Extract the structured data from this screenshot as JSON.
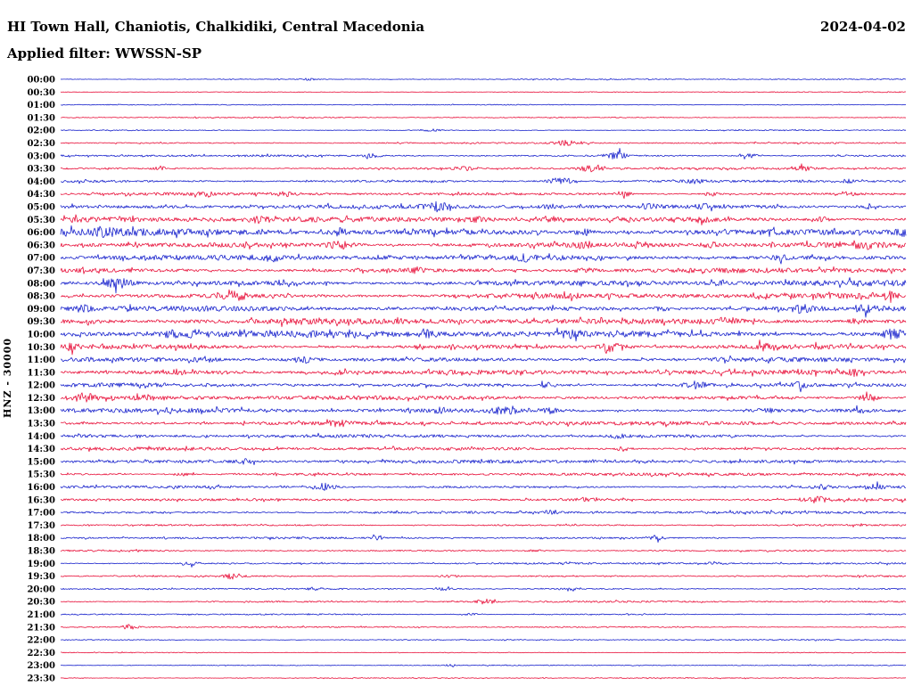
{
  "header": {
    "station_title": "HI Town Hall, Chaniotis, Chalkidiki, Central Macedonia",
    "date": "2024-04-02",
    "filter_label": "Applied filter: WWSSN-SP"
  },
  "chart_data": {
    "type": "line",
    "subtype": "helicorder",
    "title": "HI Town Hall, Chaniotis, Chalkidiki, Central Macedonia",
    "date": "2024-04-02",
    "filter": "WWSSN-SP",
    "channel_label": "HNZ - 30000",
    "row_duration_minutes": 30,
    "start_time": "00:00",
    "end_time": "24:00",
    "legend_position": "none",
    "grid": false,
    "colors": {
      "blue": "#1822cc",
      "red": "#e8103a"
    },
    "rows": [
      {
        "time": "00:00",
        "color": "blue",
        "amp": 0.6,
        "bursts": [
          {
            "x": 0.294,
            "a": 1.0
          }
        ]
      },
      {
        "time": "00:30",
        "color": "red",
        "amp": 0.5,
        "bursts": []
      },
      {
        "time": "01:00",
        "color": "blue",
        "amp": 0.5,
        "bursts": []
      },
      {
        "time": "01:30",
        "color": "red",
        "amp": 0.6,
        "bursts": []
      },
      {
        "time": "02:00",
        "color": "blue",
        "amp": 0.6,
        "bursts": [
          {
            "x": 0.44,
            "a": 1.2
          }
        ]
      },
      {
        "time": "02:30",
        "color": "red",
        "amp": 0.8,
        "bursts": [
          {
            "x": 0.6,
            "a": 3.2,
            "w": 0.016
          }
        ]
      },
      {
        "time": "03:00",
        "color": "blue",
        "amp": 1.2,
        "bursts": [
          {
            "x": 0.37,
            "a": 2.0
          },
          {
            "x": 0.657,
            "a": 4.2,
            "w": 0.012
          },
          {
            "x": 0.814,
            "a": 2.4
          }
        ]
      },
      {
        "time": "03:30",
        "color": "red",
        "amp": 1.2,
        "bursts": [
          {
            "x": 0.118,
            "a": 1.8
          },
          {
            "x": 0.477,
            "a": 2.0
          },
          {
            "x": 0.627,
            "a": 3.4,
            "w": 0.014
          },
          {
            "x": 0.878,
            "a": 2.4
          }
        ]
      },
      {
        "time": "04:00",
        "color": "blue",
        "amp": 1.5,
        "bursts": [
          {
            "x": 0.592,
            "a": 4.0,
            "w": 0.014
          },
          {
            "x": 0.75,
            "a": 1.8
          },
          {
            "x": 0.93,
            "a": 1.8
          }
        ]
      },
      {
        "time": "04:30",
        "color": "red",
        "amp": 1.6,
        "bursts": [
          {
            "x": 0.17,
            "a": 1.8
          },
          {
            "x": 0.265,
            "a": 1.8
          },
          {
            "x": 0.667,
            "a": 2.0
          },
          {
            "x": 0.77,
            "a": 1.8
          },
          {
            "x": 0.93,
            "a": 2.0
          }
        ]
      },
      {
        "time": "05:00",
        "color": "blue",
        "amp": 2.2,
        "bursts": [
          {
            "x": 0.444,
            "a": 3.8,
            "w": 0.014
          },
          {
            "x": 0.58,
            "a": 2.2
          },
          {
            "x": 0.7,
            "a": 2.4
          },
          {
            "x": 0.76,
            "a": 2.2
          },
          {
            "x": 0.96,
            "a": 2.4
          }
        ]
      },
      {
        "time": "05:30",
        "color": "red",
        "amp": 3.0,
        "bursts": [
          {
            "x": 0.234,
            "a": 2.4
          },
          {
            "x": 0.497,
            "a": 2.4
          },
          {
            "x": 0.58,
            "a": 2.4
          },
          {
            "x": 0.666,
            "a": 2.4
          },
          {
            "x": 0.76,
            "a": 2.4
          },
          {
            "x": 0.9,
            "a": 2.4
          }
        ]
      },
      {
        "time": "06:00",
        "color": "blue",
        "amp": 4.0,
        "bursts": [
          {
            "x": 0.05,
            "a": 2.8
          },
          {
            "x": 0.33,
            "a": 2.8
          },
          {
            "x": 0.62,
            "a": 2.8
          },
          {
            "x": 0.995,
            "a": 3.8
          }
        ]
      },
      {
        "time": "06:30",
        "color": "red",
        "amp": 3.3,
        "bursts": [
          {
            "x": 0.33,
            "a": 3.8,
            "w": 0.016
          },
          {
            "x": 0.62,
            "a": 2.4
          },
          {
            "x": 0.77,
            "a": 2.4
          },
          {
            "x": 0.95,
            "a": 2.4
          }
        ]
      },
      {
        "time": "07:00",
        "color": "blue",
        "amp": 2.8,
        "bursts": [
          {
            "x": 0.25,
            "a": 2.4
          },
          {
            "x": 0.55,
            "a": 2.4
          },
          {
            "x": 0.85,
            "a": 2.4
          }
        ]
      },
      {
        "time": "07:30",
        "color": "red",
        "amp": 2.8,
        "bursts": [
          {
            "x": 0.42,
            "a": 2.4
          },
          {
            "x": 0.62,
            "a": 2.4
          }
        ]
      },
      {
        "time": "08:00",
        "color": "blue",
        "amp": 3.2,
        "bursts": [
          {
            "x": 0.068,
            "a": 4.4,
            "w": 0.016
          },
          {
            "x": 0.265,
            "a": 2.8
          },
          {
            "x": 0.78,
            "a": 2.4
          }
        ]
      },
      {
        "time": "08:30",
        "color": "red",
        "amp": 3.0,
        "bursts": [
          {
            "x": 0.208,
            "a": 4.0,
            "w": 0.016
          },
          {
            "x": 0.6,
            "a": 2.8
          },
          {
            "x": 0.98,
            "a": 2.4
          }
        ]
      },
      {
        "time": "09:00",
        "color": "blue",
        "amp": 3.2,
        "bursts": [
          {
            "x": 0.025,
            "a": 2.8
          },
          {
            "x": 0.71,
            "a": 2.6
          },
          {
            "x": 0.875,
            "a": 3.4
          },
          {
            "x": 0.95,
            "a": 2.8
          }
        ]
      },
      {
        "time": "09:30",
        "color": "red",
        "amp": 3.0,
        "bursts": [
          {
            "x": 0.034,
            "a": 2.6
          },
          {
            "x": 0.275,
            "a": 2.4
          },
          {
            "x": 0.79,
            "a": 3.4,
            "w": 0.014
          },
          {
            "x": 0.94,
            "a": 2.6
          }
        ]
      },
      {
        "time": "10:00",
        "color": "blue",
        "amp": 3.6,
        "bursts": [
          {
            "x": 0.13,
            "a": 3.0
          },
          {
            "x": 0.16,
            "a": 3.0
          },
          {
            "x": 0.435,
            "a": 2.6
          },
          {
            "x": 0.6,
            "a": 2.6
          },
          {
            "x": 0.985,
            "a": 4.0,
            "w": 0.014
          }
        ]
      },
      {
        "time": "10:30",
        "color": "red",
        "amp": 2.8,
        "bursts": [
          {
            "x": 0.012,
            "a": 2.6
          },
          {
            "x": 0.655,
            "a": 4.2,
            "w": 0.016
          },
          {
            "x": 0.83,
            "a": 2.4
          }
        ]
      },
      {
        "time": "11:00",
        "color": "blue",
        "amp": 2.8,
        "bursts": [
          {
            "x": 0.17,
            "a": 2.4
          },
          {
            "x": 0.285,
            "a": 3.4,
            "w": 0.014
          }
        ]
      },
      {
        "time": "11:30",
        "color": "red",
        "amp": 2.5,
        "bursts": [
          {
            "x": 0.14,
            "a": 2.2
          },
          {
            "x": 0.33,
            "a": 2.4
          },
          {
            "x": 0.94,
            "a": 2.4
          }
        ]
      },
      {
        "time": "12:00",
        "color": "blue",
        "amp": 2.4,
        "bursts": [
          {
            "x": 0.577,
            "a": 2.4
          },
          {
            "x": 0.75,
            "a": 3.6,
            "w": 0.014
          },
          {
            "x": 0.875,
            "a": 2.2
          }
        ]
      },
      {
        "time": "12:30",
        "color": "red",
        "amp": 2.4,
        "bursts": [
          {
            "x": 0.028,
            "a": 3.8,
            "w": 0.012
          },
          {
            "x": 0.1,
            "a": 2.2
          },
          {
            "x": 0.955,
            "a": 4.0,
            "w": 0.012
          }
        ]
      },
      {
        "time": "13:00",
        "color": "blue",
        "amp": 2.4,
        "bursts": [
          {
            "x": 0.45,
            "a": 2.2
          },
          {
            "x": 0.525,
            "a": 3.8,
            "w": 0.012
          },
          {
            "x": 0.578,
            "a": 2.4
          },
          {
            "x": 0.835,
            "a": 2.2
          },
          {
            "x": 0.945,
            "a": 2.6
          }
        ]
      },
      {
        "time": "13:30",
        "color": "red",
        "amp": 2.2,
        "bursts": [
          {
            "x": 0.33,
            "a": 2.6
          }
        ]
      },
      {
        "time": "14:00",
        "color": "blue",
        "amp": 1.8,
        "bursts": [
          {
            "x": 0.66,
            "a": 1.8
          }
        ]
      },
      {
        "time": "14:30",
        "color": "red",
        "amp": 1.8,
        "bursts": [
          {
            "x": 0.665,
            "a": 2.0
          }
        ]
      },
      {
        "time": "15:00",
        "color": "blue",
        "amp": 1.8,
        "bursts": [
          {
            "x": 0.218,
            "a": 2.4
          }
        ]
      },
      {
        "time": "15:30",
        "color": "red",
        "amp": 1.6,
        "bursts": [
          {
            "x": 0.145,
            "a": 2.0
          }
        ]
      },
      {
        "time": "16:00",
        "color": "blue",
        "amp": 1.6,
        "bursts": [
          {
            "x": 0.313,
            "a": 4.0,
            "w": 0.012
          },
          {
            "x": 0.9,
            "a": 2.2
          },
          {
            "x": 0.965,
            "a": 2.6
          }
        ]
      },
      {
        "time": "16:30",
        "color": "red",
        "amp": 1.6,
        "bursts": [
          {
            "x": 0.62,
            "a": 1.8
          },
          {
            "x": 0.893,
            "a": 3.2,
            "w": 0.014
          }
        ]
      },
      {
        "time": "17:00",
        "color": "blue",
        "amp": 1.4,
        "bursts": [
          {
            "x": 0.582,
            "a": 2.2
          }
        ]
      },
      {
        "time": "17:30",
        "color": "red",
        "amp": 1.1,
        "bursts": []
      },
      {
        "time": "18:00",
        "color": "blue",
        "amp": 1.1,
        "bursts": [
          {
            "x": 0.377,
            "a": 1.8
          },
          {
            "x": 0.705,
            "a": 2.0
          }
        ]
      },
      {
        "time": "18:30",
        "color": "red",
        "amp": 1.0,
        "bursts": [
          {
            "x": 0.56,
            "a": 1.4
          }
        ]
      },
      {
        "time": "19:00",
        "color": "blue",
        "amp": 1.0,
        "bursts": [
          {
            "x": 0.155,
            "a": 1.8
          },
          {
            "x": 0.775,
            "a": 1.6
          }
        ]
      },
      {
        "time": "19:30",
        "color": "red",
        "amp": 1.0,
        "bursts": [
          {
            "x": 0.203,
            "a": 3.0,
            "w": 0.012
          },
          {
            "x": 0.46,
            "a": 1.6
          }
        ]
      },
      {
        "time": "20:00",
        "color": "blue",
        "amp": 0.9,
        "bursts": [
          {
            "x": 0.3,
            "a": 1.4
          },
          {
            "x": 0.455,
            "a": 1.6
          },
          {
            "x": 0.6,
            "a": 1.4
          }
        ]
      },
      {
        "time": "20:30",
        "color": "red",
        "amp": 0.9,
        "bursts": [
          {
            "x": 0.503,
            "a": 3.2,
            "w": 0.01
          }
        ]
      },
      {
        "time": "21:00",
        "color": "blue",
        "amp": 0.8,
        "bursts": [
          {
            "x": 0.487,
            "a": 1.2
          }
        ]
      },
      {
        "time": "21:30",
        "color": "red",
        "amp": 0.7,
        "bursts": [
          {
            "x": 0.082,
            "a": 2.8,
            "w": 0.01
          }
        ]
      },
      {
        "time": "22:00",
        "color": "blue",
        "amp": 0.6,
        "bursts": []
      },
      {
        "time": "22:30",
        "color": "red",
        "amp": 0.5,
        "bursts": []
      },
      {
        "time": "23:00",
        "color": "blue",
        "amp": 0.5,
        "bursts": [
          {
            "x": 0.46,
            "a": 1.0
          }
        ]
      },
      {
        "time": "23:30",
        "color": "red",
        "amp": 0.5,
        "bursts": []
      }
    ]
  }
}
